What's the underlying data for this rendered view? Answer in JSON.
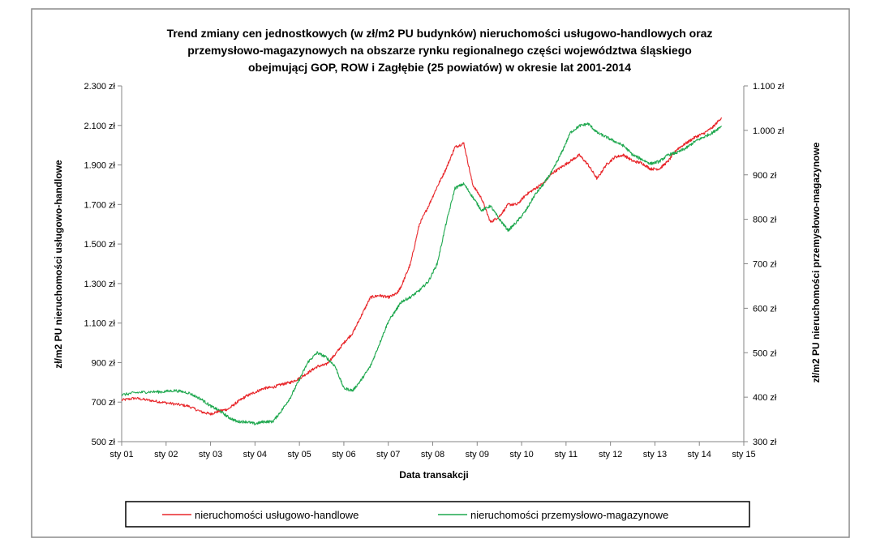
{
  "chart_data": {
    "type": "line",
    "title_lines": [
      "Trend zmiany cen jednostkowych (w zł/m2 PU budynków) nieruchomości usługowo-handlowych oraz",
      "przemysłowo-magazynowych na obszarze rynku regionalnego części województwa śląskiego",
      "obejmującj GOP, ROW i Zagłębie (25 powiatów) w okresie lat 2001-2014"
    ],
    "xlabel": "Data transakcji",
    "ylabel_left": "zł/m2 PU nieruchomości usługowo-handlowe",
    "ylabel_right": "zł/m2 PU nieruchomości przemysłowo-magazynowe",
    "x_ticks": [
      "sty 01",
      "sty 02",
      "sty 03",
      "sty 04",
      "sty 05",
      "sty 06",
      "sty 07",
      "sty 08",
      "sty 09",
      "sty 10",
      "sty 11",
      "sty 12",
      "sty 13",
      "sty 14",
      "sty 15"
    ],
    "xlim": [
      2001,
      2015
    ],
    "ylim_left": [
      500,
      2300
    ],
    "yticks_left": [
      "500 zł",
      "700 zł",
      "900 zł",
      "1.100 zł",
      "1.300 zł",
      "1.500 zł",
      "1.700 zł",
      "1.900 zł",
      "2.100 zł",
      "2.300 zł"
    ],
    "ylim_right": [
      300,
      1100
    ],
    "yticks_right": [
      "300 zł",
      "400 zł",
      "500 zł",
      "600 zł",
      "700 zł",
      "800 zł",
      "900 zł",
      "1.000 zł",
      "1.100 zł"
    ],
    "series": [
      {
        "name": "nieruchomości usługowo-handlowe",
        "axis": "left",
        "color": "#e8262a",
        "x": [
          2001.0,
          2001.3,
          2001.6,
          2001.9,
          2002.2,
          2002.5,
          2002.8,
          2003.0,
          2003.2,
          2003.4,
          2003.6,
          2003.8,
          2004.0,
          2004.2,
          2004.4,
          2004.6,
          2004.8,
          2005.0,
          2005.2,
          2005.4,
          2005.6,
          2005.8,
          2006.0,
          2006.2,
          2006.4,
          2006.6,
          2006.8,
          2007.0,
          2007.2,
          2007.3,
          2007.5,
          2007.7,
          2007.9,
          2008.1,
          2008.3,
          2008.5,
          2008.7,
          2008.9,
          2009.1,
          2009.3,
          2009.5,
          2009.7,
          2009.9,
          2010.1,
          2010.3,
          2010.5,
          2010.7,
          2010.9,
          2011.1,
          2011.3,
          2011.5,
          2011.7,
          2011.9,
          2012.1,
          2012.3,
          2012.5,
          2012.7,
          2012.9,
          2013.1,
          2013.3,
          2013.5,
          2013.7,
          2013.9,
          2014.1,
          2014.3,
          2014.5
        ],
        "values": [
          710,
          720,
          710,
          700,
          690,
          680,
          650,
          640,
          655,
          665,
          700,
          730,
          750,
          770,
          775,
          790,
          800,
          820,
          850,
          880,
          890,
          940,
          1000,
          1050,
          1140,
          1230,
          1240,
          1230,
          1250,
          1290,
          1400,
          1600,
          1690,
          1790,
          1880,
          1990,
          2010,
          1800,
          1730,
          1610,
          1640,
          1700,
          1700,
          1750,
          1780,
          1810,
          1860,
          1890,
          1920,
          1950,
          1900,
          1830,
          1900,
          1940,
          1950,
          1920,
          1910,
          1880,
          1880,
          1920,
          1980,
          2010,
          2040,
          2060,
          2090,
          2140
        ]
      },
      {
        "name": "nieruchomości przemysłowo-magazynowe",
        "axis": "right",
        "color": "#1fa84f",
        "x": [
          2001.0,
          2001.3,
          2001.6,
          2001.9,
          2002.2,
          2002.5,
          2002.8,
          2003.0,
          2003.2,
          2003.4,
          2003.6,
          2003.8,
          2004.0,
          2004.2,
          2004.4,
          2004.6,
          2004.8,
          2005.0,
          2005.2,
          2005.4,
          2005.6,
          2005.8,
          2006.0,
          2006.2,
          2006.4,
          2006.6,
          2006.8,
          2007.0,
          2007.2,
          2007.3,
          2007.5,
          2007.7,
          2007.9,
          2008.1,
          2008.3,
          2008.5,
          2008.7,
          2008.9,
          2009.1,
          2009.3,
          2009.5,
          2009.7,
          2009.9,
          2010.1,
          2010.3,
          2010.5,
          2010.7,
          2010.9,
          2011.1,
          2011.3,
          2011.5,
          2011.7,
          2011.9,
          2012.1,
          2012.3,
          2012.5,
          2012.7,
          2012.9,
          2013.1,
          2013.3,
          2013.5,
          2013.7,
          2013.9,
          2014.1,
          2014.3,
          2014.5
        ],
        "values": [
          405,
          410,
          412,
          412,
          415,
          410,
          395,
          380,
          370,
          355,
          345,
          345,
          340,
          345,
          345,
          370,
          400,
          440,
          480,
          500,
          490,
          470,
          420,
          415,
          440,
          470,
          520,
          570,
          600,
          615,
          625,
          640,
          660,
          700,
          790,
          870,
          880,
          850,
          820,
          830,
          800,
          775,
          795,
          820,
          855,
          880,
          910,
          950,
          995,
          1010,
          1015,
          995,
          985,
          975,
          965,
          945,
          935,
          925,
          930,
          945,
          950,
          960,
          975,
          985,
          995,
          1010
        ]
      }
    ],
    "legend": {
      "placement": "bottom",
      "entries": [
        "nieruchomości usługowo-handlowe",
        "nieruchomości przemysłowo-magazynowe"
      ]
    }
  }
}
